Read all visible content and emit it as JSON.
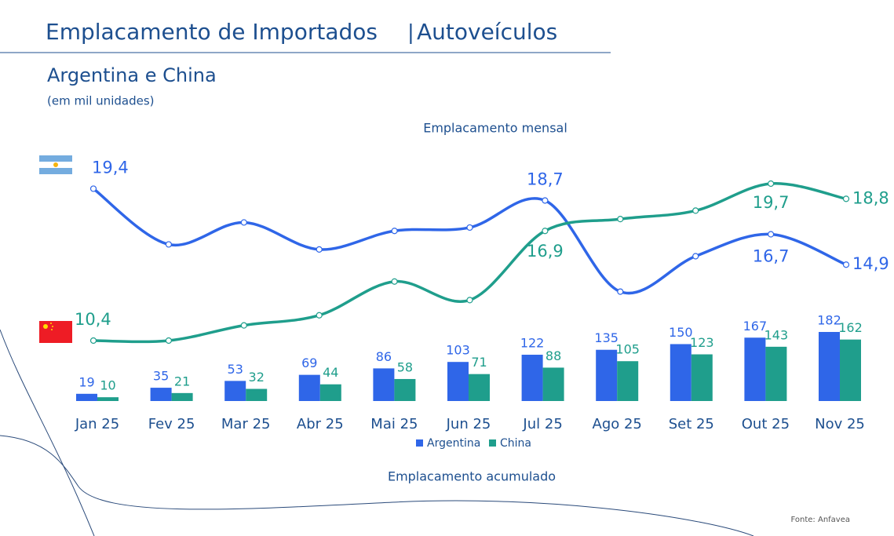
{
  "header": {
    "title": "Emplacamento de Importados",
    "title2": "Autoveículos",
    "subtitle": "Argentina e China",
    "unit": "(em mil unidades)"
  },
  "chart_data": [
    {
      "type": "line",
      "title": "Emplacamento mensal",
      "series": [
        {
          "color": "#2f66e8",
          "values": [
            19.4,
            16.1,
            17.4,
            15.8,
            16.9,
            17.1,
            18.7,
            13.3,
            15.4,
            16.7,
            14.9
          ],
          "value_labels": [
            "19,4",
            null,
            null,
            null,
            null,
            null,
            "18,7",
            null,
            null,
            "16,7",
            "14,9"
          ]
        },
        {
          "color": "#1f9e8c",
          "values": [
            10.4,
            10.4,
            11.3,
            11.9,
            13.9,
            12.8,
            16.9,
            17.6,
            18.1,
            19.7,
            18.8
          ],
          "value_labels": [
            "10,4",
            null,
            null,
            null,
            null,
            null,
            "16,9",
            null,
            null,
            "19,7",
            "18,8"
          ]
        }
      ]
    },
    {
      "type": "bar",
      "title": "Emplacamento acumulado",
      "categories": [
        "Jan 25",
        "Fev 25",
        "Mar 25",
        "Abr 25",
        "Mai 25",
        "Jun 25",
        "Jul 25",
        "Ago 25",
        "Set 25",
        "Out 25",
        "Nov 25"
      ],
      "series": [
        {
          "name": "Argentina",
          "color": "#2f66e8",
          "values": [
            19,
            35,
            53,
            69,
            86,
            103,
            122,
            135,
            150,
            167,
            182
          ]
        },
        {
          "name": "China",
          "color": "#1f9e8c",
          "values": [
            10,
            21,
            32,
            44,
            58,
            71,
            88,
            105,
            123,
            143,
            162
          ]
        }
      ]
    }
  ],
  "footer": {
    "source": "Fonte: Anfavea"
  }
}
